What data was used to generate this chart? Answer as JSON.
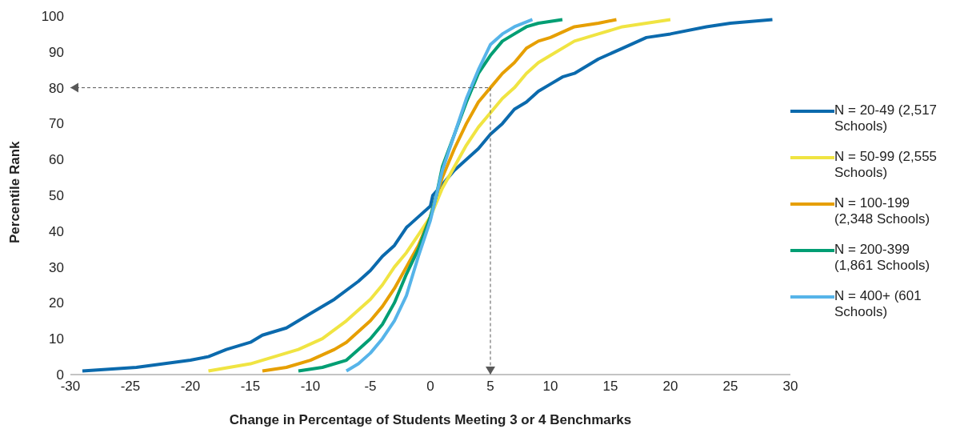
{
  "chart_data": {
    "type": "line",
    "xlabel": "Change in Percentage of Students Meeting 3 or 4 Benchmarks",
    "ylabel": "Percentile Rank",
    "xlim": [
      -30,
      30
    ],
    "xticks": [
      -30,
      -25,
      -20,
      -15,
      -10,
      -5,
      0,
      5,
      10,
      15,
      20,
      25,
      30
    ],
    "ylim": [
      0,
      100
    ],
    "yticks": [
      0,
      10,
      20,
      30,
      40,
      50,
      60,
      70,
      80,
      90,
      100
    ],
    "grid": false,
    "legend": "right",
    "marker": "none",
    "line_style": "solid",
    "ref_lines": [
      {
        "axis": "y",
        "value": 80,
        "label": null,
        "line_style": "dashed",
        "color": "#595959"
      },
      {
        "axis": "x",
        "value": 5,
        "label": null,
        "line_style": "dashed",
        "color": "#595959"
      }
    ],
    "series": [
      {
        "name": "N = 20-49 (2,517 Schools)",
        "color": "#0b6aad",
        "x": [
          -29,
          -24.5,
          -20,
          -18.5,
          -17,
          -15,
          -14,
          -12,
          -10,
          -8,
          -6,
          -5,
          -4,
          -3,
          -2,
          -1,
          0,
          0.2,
          1,
          2,
          3,
          4,
          5,
          6,
          7,
          8,
          9,
          10,
          11,
          12,
          14,
          16,
          18,
          20,
          23,
          25,
          28.5
        ],
        "values": [
          1,
          2,
          4,
          5,
          7,
          9,
          11,
          13,
          17,
          21,
          26,
          29,
          33,
          36,
          41,
          44,
          47,
          50,
          53,
          57,
          60,
          63,
          67,
          70,
          74,
          76,
          79,
          81,
          83,
          84,
          88,
          91,
          94,
          95,
          97,
          98,
          99
        ]
      },
      {
        "name": "N = 50-99 (2,555 Schools)",
        "color": "#f0e442",
        "x": [
          -18.5,
          -15,
          -13,
          -11,
          -9,
          -7,
          -5,
          -4,
          -3,
          -2,
          -1,
          0,
          0.5,
          1,
          2,
          3,
          4,
          5,
          6,
          7,
          8,
          9,
          10,
          12,
          14,
          16,
          18,
          20
        ],
        "values": [
          1,
          3,
          5,
          7,
          10,
          15,
          21,
          25,
          30,
          34,
          39,
          44,
          48,
          52,
          58,
          64,
          69,
          73,
          77,
          80,
          84,
          87,
          89,
          93,
          95,
          97,
          98,
          99
        ]
      },
      {
        "name": "N = 100-199 (2,348 Schools)",
        "color": "#e69f00",
        "x": [
          -14,
          -12,
          -10,
          -8,
          -7,
          -6,
          -5,
          -4,
          -3,
          -2,
          -1,
          0,
          0.5,
          1,
          2,
          3,
          4,
          5,
          6,
          7,
          8,
          9,
          10,
          12,
          14,
          15.5
        ],
        "values": [
          1,
          2,
          4,
          7,
          9,
          12,
          15,
          19,
          24,
          30,
          36,
          44,
          50,
          55,
          63,
          70,
          76,
          80,
          84,
          87,
          91,
          93,
          94,
          97,
          98,
          99
        ]
      },
      {
        "name": "N = 200-399 (1,861 Schools)",
        "color": "#009e73",
        "x": [
          -11,
          -9,
          -7,
          -6,
          -5,
          -4,
          -3,
          -2,
          -1,
          0,
          0.5,
          1,
          2,
          3,
          4,
          5,
          6,
          7,
          8,
          9,
          11
        ],
        "values": [
          1,
          2,
          4,
          7,
          10,
          14,
          20,
          28,
          35,
          44,
          50,
          58,
          67,
          76,
          84,
          89,
          93,
          95,
          97,
          98,
          99
        ]
      },
      {
        "name": "N = 400+ (601 Schools)",
        "color": "#56b4e9",
        "x": [
          -7,
          -6,
          -5,
          -4,
          -3,
          -2,
          -1,
          0,
          0.5,
          1,
          2,
          3,
          4,
          5,
          6,
          7,
          8.5
        ],
        "values": [
          1,
          3,
          6,
          10,
          15,
          22,
          33,
          43,
          50,
          57,
          67,
          77,
          85,
          92,
          95,
          97,
          99
        ]
      }
    ]
  }
}
